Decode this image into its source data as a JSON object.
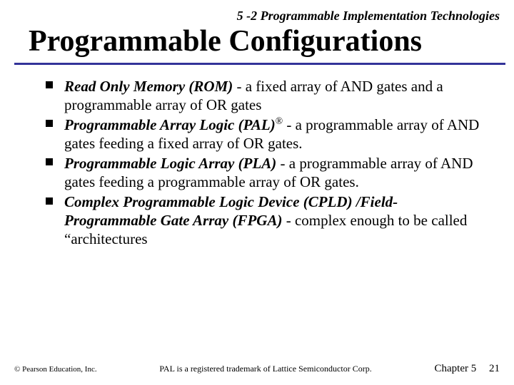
{
  "colors": {
    "background": "#ffffff",
    "text": "#000000",
    "rule": "#333399"
  },
  "section_label": "5 -2 Programmable Implementation Technologies",
  "title": "Programmable Configurations",
  "bullets": [
    {
      "term": "Read Only Memory (ROM)",
      "sup": "",
      "rest": " - a fixed array of AND gates and a programmable array of OR gates"
    },
    {
      "term": "Programmable Array Logic (PAL)",
      "sup": "®",
      "rest": " - a programmable array of AND gates feeding a fixed array of OR gates."
    },
    {
      "term": "Programmable Logic Array (PLA)",
      "sup": "",
      "rest": " - a programmable array of AND gates feeding a programmable array of OR gates."
    },
    {
      "term": "Complex Programmable Logic Device (CPLD) /Field-Programmable Gate Array (FPGA)",
      "sup": "",
      "rest": " - complex enough to be called “architectures"
    }
  ],
  "footer": {
    "copyright": "© Pearson Education, Inc.",
    "footnote": "PAL is a registered trademark of Lattice Semiconductor Corp.",
    "chapter_label": "Chapter  5",
    "page_number": "21"
  }
}
